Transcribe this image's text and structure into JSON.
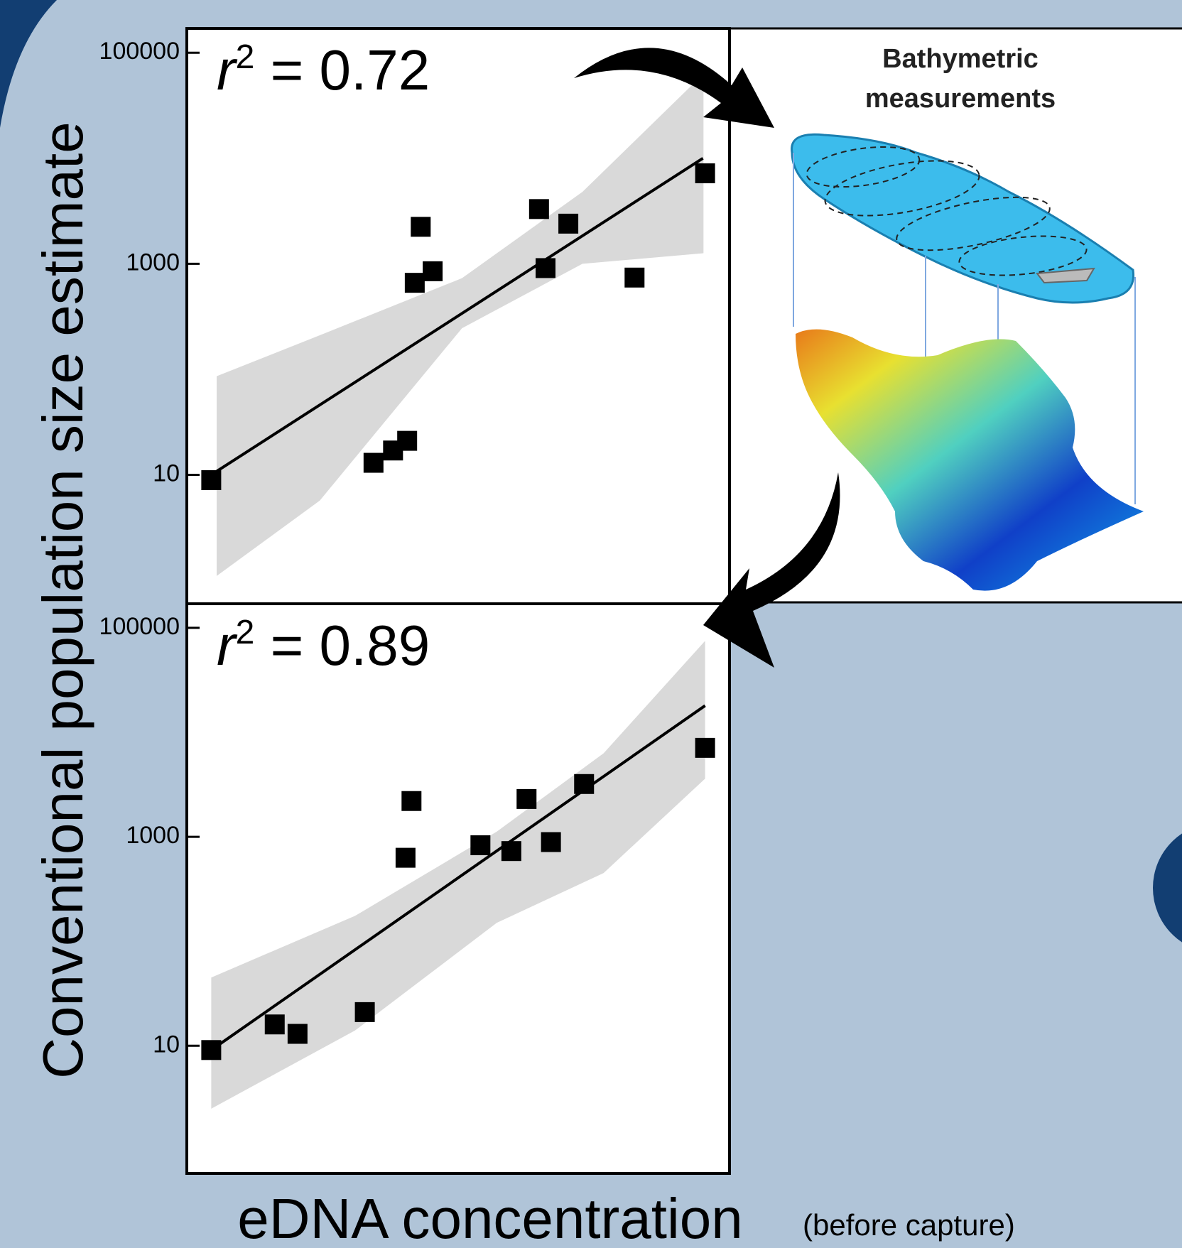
{
  "figure": {
    "y_label": "Conventional population size estimate",
    "x_label": "eDNA concentration",
    "x_label_note": "(before capture)"
  },
  "diagram": {
    "title": [
      "Bathymetric",
      "measurements"
    ]
  },
  "chart_data": [
    {
      "type": "scatter",
      "log_y": true,
      "xlim": [
        0,
        1
      ],
      "ylim": [
        0.6,
        170000
      ],
      "yticks": [
        10,
        1000,
        100000
      ],
      "color": "#000000",
      "x": [
        0.045,
        0.344,
        0.38,
        0.406,
        0.42,
        0.431,
        0.453,
        0.649,
        0.661,
        0.703,
        0.825,
        0.955
      ],
      "values": [
        8.9,
        13,
        17,
        21,
        660,
        2240,
        850,
        3300,
        910,
        2400,
        740,
        7200
      ],
      "fit": {
        "x": [
          0.045,
          0.951
        ],
        "values": [
          10,
          10000
        ],
        "color": "#000000"
      },
      "band": {
        "x": [
          0.055,
          0.245,
          0.507,
          0.729,
          0.952
        ],
        "upper": [
          86,
          210,
          730,
          4800,
          63000
        ],
        "lower": [
          1.1,
          5.7,
          245,
          1000,
          1260
        ],
        "color": "#d9d9d9"
      },
      "annotation": {
        "symbol": "r",
        "superscript": "2",
        "text": " = 0.72"
      }
    },
    {
      "type": "scatter",
      "log_y": true,
      "xlim": [
        0,
        1
      ],
      "ylim": [
        0.6,
        170000
      ],
      "yticks": [
        10,
        1000,
        100000
      ],
      "color": "#000000",
      "x": [
        0.045,
        0.162,
        0.204,
        0.328,
        0.403,
        0.414,
        0.541,
        0.598,
        0.626,
        0.671,
        0.732,
        0.955
      ],
      "values": [
        9.1,
        16,
        13,
        21,
        630,
        2200,
        830,
        730,
        2300,
        890,
        3200,
        7100
      ],
      "fit": {
        "x": [
          0.045,
          0.955
        ],
        "values": [
          9.1,
          18000
        ],
        "color": "#000000"
      },
      "band": {
        "x": [
          0.045,
          0.31,
          0.571,
          0.768,
          0.955
        ],
        "upper": [
          45,
          175,
          1120,
          6300,
          75000
        ],
        "lower": [
          2.5,
          14,
          150,
          450,
          3600
        ],
        "color": "#d9d9d9"
      },
      "annotation": {
        "symbol": "r",
        "superscript": "2",
        "text": " = 0.89"
      }
    }
  ]
}
